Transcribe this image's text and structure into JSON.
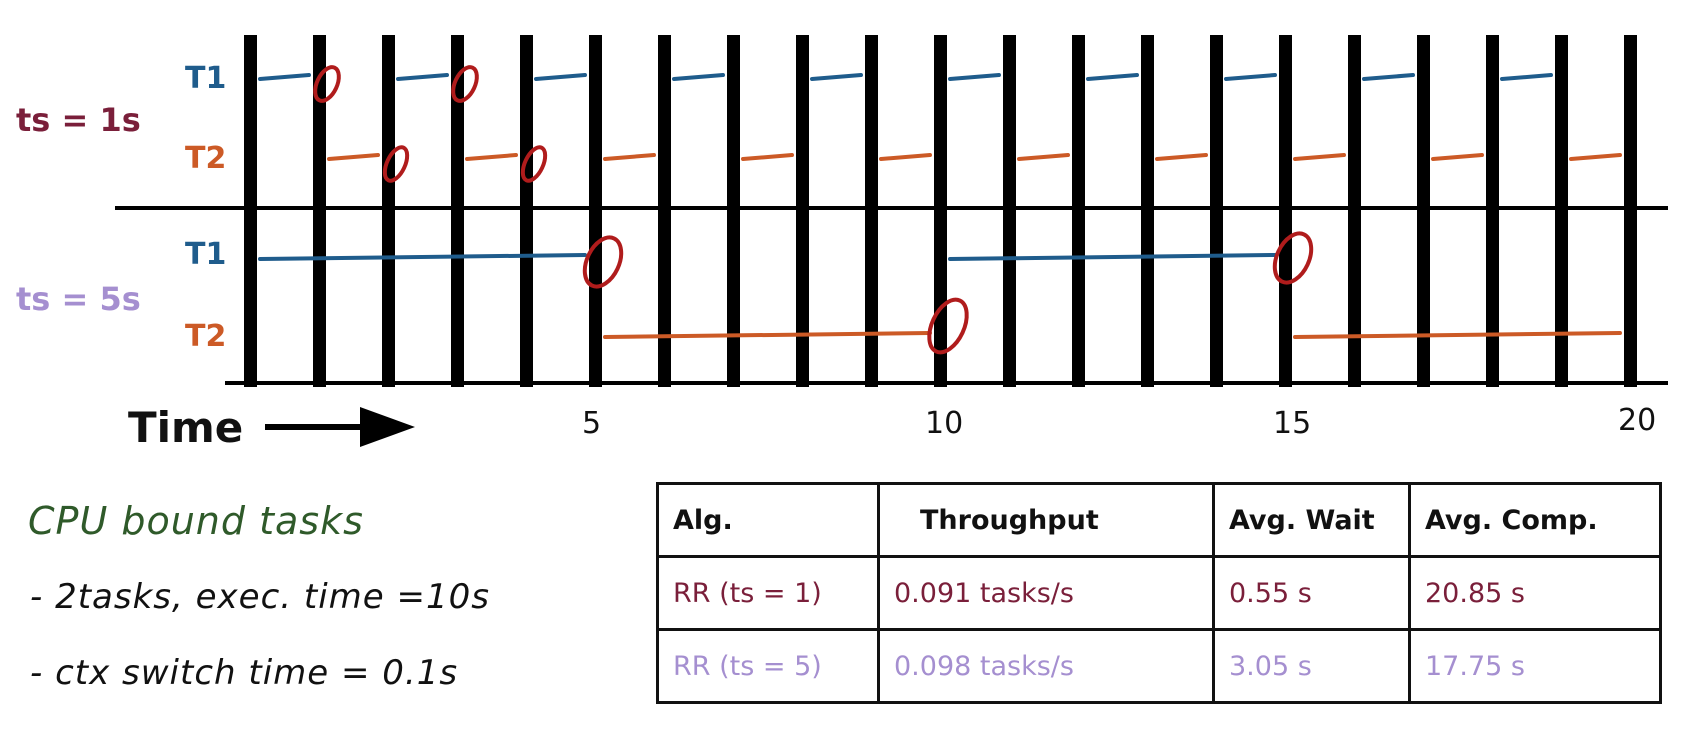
{
  "diagram": {
    "time_label": "Time",
    "tick_labels": [
      "5",
      "10",
      "15",
      "20"
    ],
    "rows": [
      {
        "group_label": "ts = 1s",
        "group_color": "#7a1f3a",
        "t1_label": "T1",
        "t2_label": "T2"
      },
      {
        "group_label": "ts = 5s",
        "group_color": "#a58fd0",
        "t1_label": "T1",
        "t2_label": "T2"
      }
    ],
    "colors": {
      "t1": "#1f5c8c",
      "t2": "#cc5a26",
      "switch_mark": "#b01c1c",
      "bars": "#000000"
    },
    "timeline": {
      "max_time": 20,
      "ts1_t1_segments": [
        [
          0,
          1
        ],
        [
          2,
          3
        ],
        [
          4,
          5
        ],
        [
          6,
          7
        ],
        [
          8,
          9
        ],
        [
          10,
          11
        ],
        [
          12,
          13
        ],
        [
          14,
          15
        ],
        [
          16,
          17
        ],
        [
          18,
          19
        ]
      ],
      "ts1_t2_segments": [
        [
          1,
          2
        ],
        [
          3,
          4
        ],
        [
          5,
          6
        ],
        [
          7,
          8
        ],
        [
          9,
          10
        ],
        [
          11,
          12
        ],
        [
          13,
          14
        ],
        [
          15,
          16
        ],
        [
          17,
          18
        ],
        [
          19,
          20
        ]
      ],
      "ts5_t1_segments": [
        [
          0,
          5
        ],
        [
          10,
          15
        ]
      ],
      "ts5_t2_segments": [
        [
          5,
          10
        ],
        [
          15,
          20
        ]
      ]
    }
  },
  "notes": {
    "title": "CPU bound tasks",
    "line1": "- 2tasks, exec. time =10s",
    "line2": "- ctx switch time = 0.1s",
    "color": "#2f5a2a"
  },
  "table": {
    "headers": [
      "Alg.",
      "Throughput",
      "Avg. Wait",
      "Avg. Comp."
    ],
    "rows": [
      {
        "cells": [
          "RR (ts = 1)",
          "0.091 tasks/s",
          "0.55 s",
          "20.85 s"
        ],
        "color": "#7a1f3a"
      },
      {
        "cells": [
          "RR (ts = 5)",
          "0.098 tasks/s",
          "3.05 s",
          "17.75 s"
        ],
        "color": "#a58fd0"
      }
    ]
  }
}
